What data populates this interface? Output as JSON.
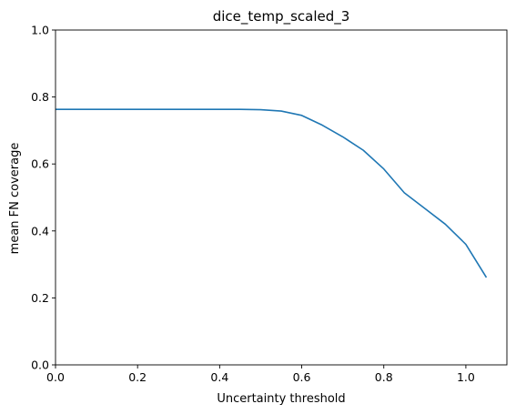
{
  "chart_data": {
    "type": "line",
    "title": "dice_temp_scaled_3",
    "xlabel": "Uncertainty threshold",
    "ylabel": "mean FN coverage",
    "xlim": [
      0.0,
      1.1
    ],
    "ylim": [
      0.0,
      1.0
    ],
    "xticks": [
      0.0,
      0.2,
      0.4,
      0.6,
      0.8,
      1.0
    ],
    "xtick_labels": [
      "0.0",
      "0.2",
      "0.4",
      "0.6",
      "0.8",
      "1.0"
    ],
    "yticks": [
      0.0,
      0.2,
      0.4,
      0.6,
      0.8,
      1.0
    ],
    "ytick_labels": [
      "0.0",
      "0.2",
      "0.4",
      "0.6",
      "0.8",
      "1.0"
    ],
    "grid": false,
    "legend": "none",
    "series": [
      {
        "color": "#1f77b4",
        "x": [
          0.0,
          0.05,
          0.1,
          0.15,
          0.2,
          0.25,
          0.3,
          0.35,
          0.4,
          0.45,
          0.5,
          0.55,
          0.6,
          0.65,
          0.7,
          0.75,
          0.8,
          0.85,
          0.9,
          0.95,
          1.0,
          1.05
        ],
        "y": [
          0.763,
          0.763,
          0.763,
          0.763,
          0.763,
          0.763,
          0.763,
          0.763,
          0.763,
          0.763,
          0.762,
          0.758,
          0.745,
          0.716,
          0.681,
          0.641,
          0.585,
          0.514,
          0.467,
          0.42,
          0.36,
          0.261
        ]
      }
    ]
  }
}
